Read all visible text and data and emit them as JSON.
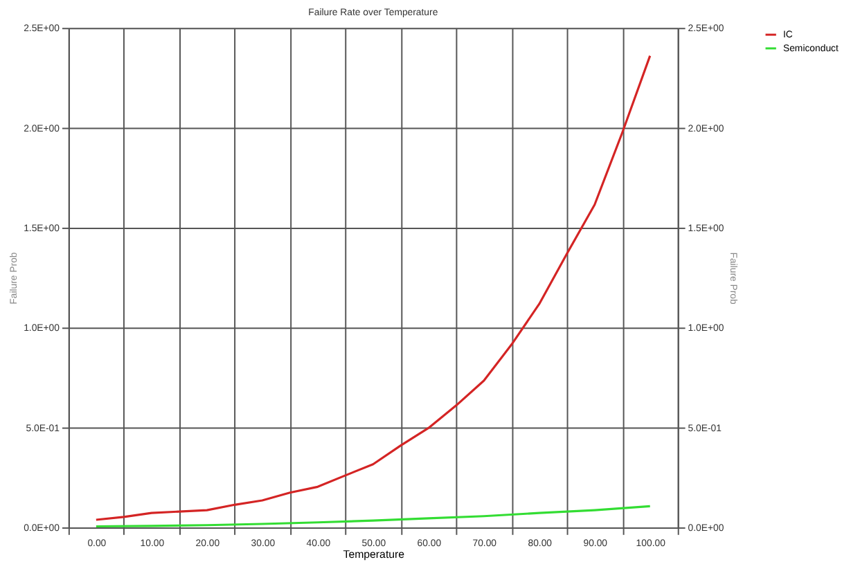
{
  "chart_data": {
    "type": "line",
    "title": "Failure Rate over Temperature",
    "xlabel": "Temperature",
    "ylabel": "Failure Prob",
    "y2label": "Failure Prob",
    "x": [
      0,
      5,
      10,
      15,
      20,
      25,
      30,
      35,
      40,
      45,
      50,
      55,
      60,
      65,
      70,
      75,
      80,
      85,
      90,
      95,
      100
    ],
    "series": [
      {
        "name": "IC",
        "color": "#d42424",
        "values": [
          0.038,
          0.052,
          0.072,
          0.079,
          0.086,
          0.113,
          0.135,
          0.174,
          0.203,
          0.26,
          0.316,
          0.41,
          0.497,
          0.61,
          0.734,
          0.915,
          1.118,
          1.37,
          1.615,
          1.976,
          2.36
        ]
      },
      {
        "name": "Semiconduct",
        "color": "#33dd33",
        "x": [
          0,
          10,
          20,
          30,
          40,
          50,
          60,
          70,
          80,
          90,
          100
        ],
        "values": [
          0.005,
          0.007,
          0.011,
          0.017,
          0.025,
          0.034,
          0.045,
          0.056,
          0.072,
          0.086,
          0.106
        ]
      }
    ],
    "xlim": [
      -5,
      105
    ],
    "xticks": [
      {
        "value": -5,
        "label": null
      },
      {
        "value": 0,
        "label": "0.00"
      },
      {
        "value": 5,
        "label": null
      },
      {
        "value": 10,
        "label": "10.00"
      },
      {
        "value": 15,
        "label": null
      },
      {
        "value": 20,
        "label": "20.00"
      },
      {
        "value": 25,
        "label": null
      },
      {
        "value": 30,
        "label": "30.00"
      },
      {
        "value": 35,
        "label": null
      },
      {
        "value": 40,
        "label": "40.00"
      },
      {
        "value": 45,
        "label": null
      },
      {
        "value": 50,
        "label": "50.00"
      },
      {
        "value": 55,
        "label": null
      },
      {
        "value": 60,
        "label": "60.00"
      },
      {
        "value": 65,
        "label": null
      },
      {
        "value": 70,
        "label": "70.00"
      },
      {
        "value": 75,
        "label": null
      },
      {
        "value": 80,
        "label": "80.00"
      },
      {
        "value": 85,
        "label": null
      },
      {
        "value": 90,
        "label": "90.00"
      },
      {
        "value": 95,
        "label": null
      },
      {
        "value": 100,
        "label": "100.00"
      },
      {
        "value": 105,
        "label": null
      }
    ],
    "ylim": [
      0,
      2.5
    ],
    "yticks": [
      {
        "value": 0,
        "label": "0.0E+00"
      },
      {
        "value": 0.5,
        "label": "5.0E-01"
      },
      {
        "value": 1,
        "label": "1.0E+00"
      },
      {
        "value": 1.5,
        "label": "1.5E+00"
      },
      {
        "value": 2,
        "label": "2.0E+00"
      },
      {
        "value": 2.5,
        "label": "2.5E+00"
      }
    ],
    "y2lim": [
      0,
      2.5
    ],
    "y2ticks": [
      {
        "value": 0,
        "label": "0.0E+00"
      },
      {
        "value": 0.5,
        "label": "5.0E-01"
      },
      {
        "value": 1,
        "label": "1.0E+00"
      },
      {
        "value": 1.5,
        "label": "1.5E+00"
      },
      {
        "value": 2,
        "label": "2.0E+00"
      },
      {
        "value": 2.5,
        "label": "2.5E+00"
      }
    ],
    "grid": true,
    "legend": "right",
    "marker": "none",
    "line_style": "solid"
  }
}
